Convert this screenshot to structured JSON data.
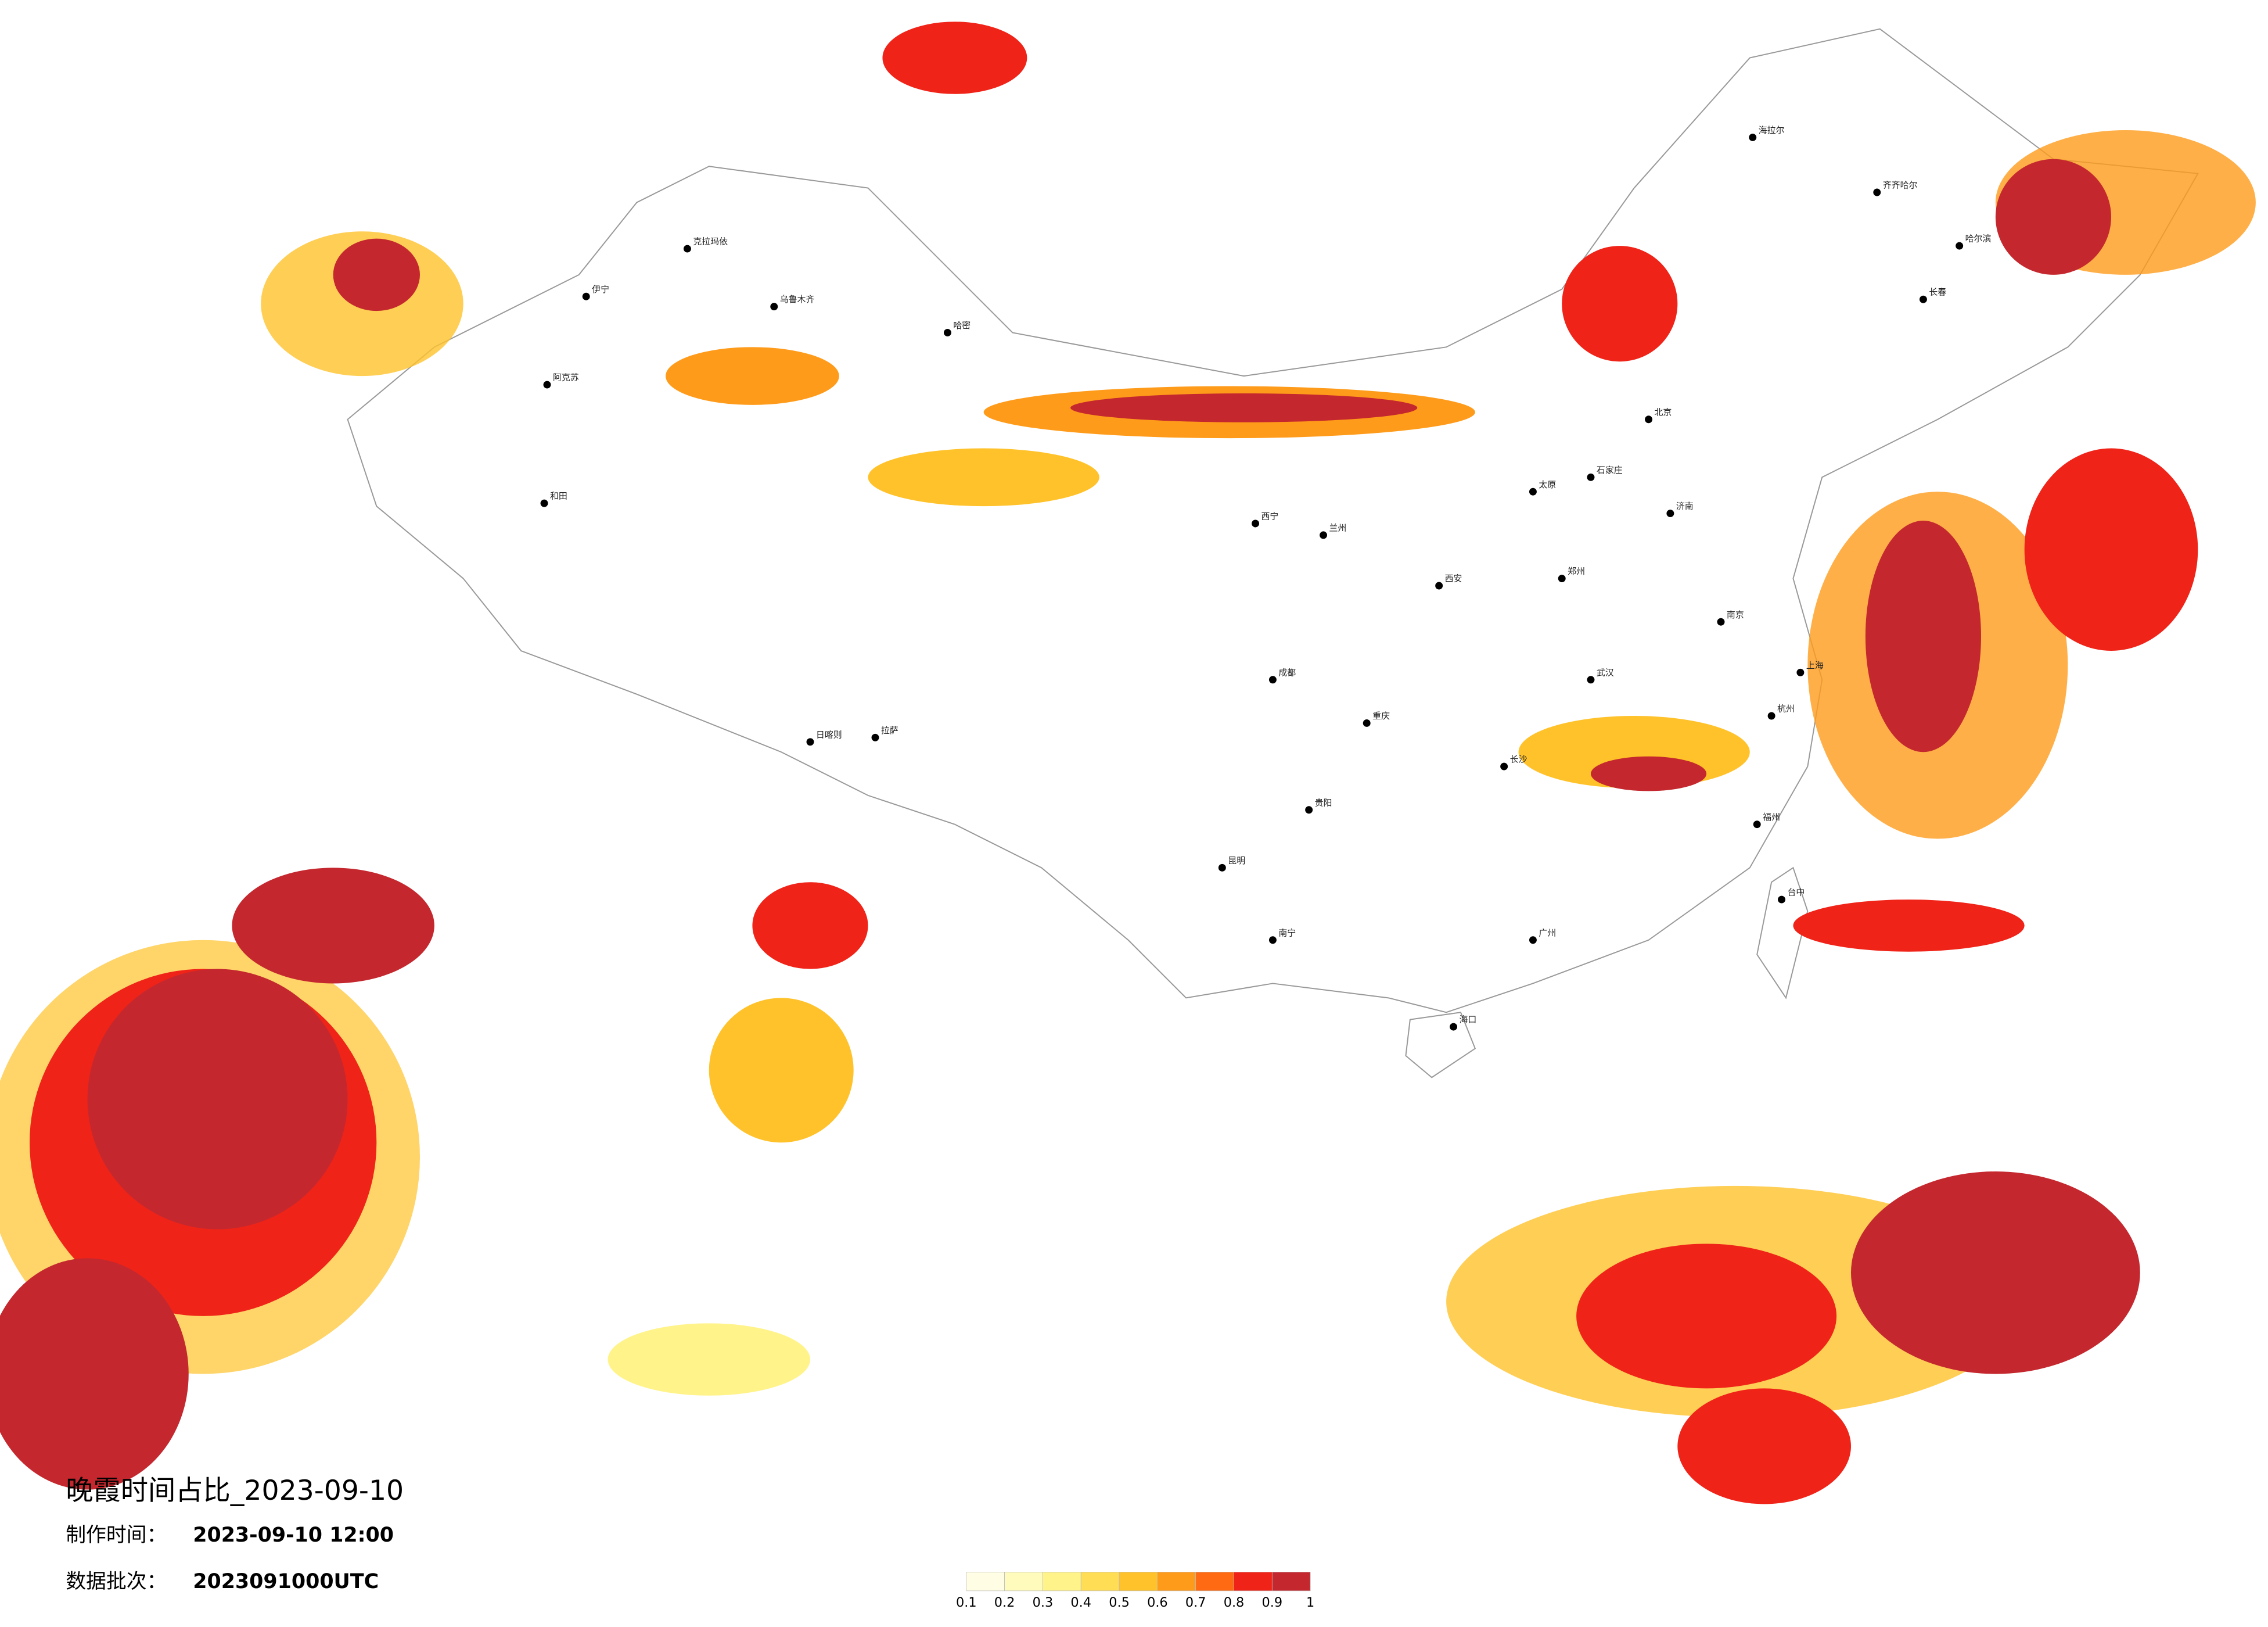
{
  "header": {
    "title": "晚霞时间占比_2023-09-10",
    "made_label": "制作时间：",
    "made_value": "2023-09-10 12:00",
    "batch_label": "数据批次：",
    "batch_value": "2023091000UTC"
  },
  "legend": {
    "ticks": [
      0.1,
      0.2,
      0.3,
      0.4,
      0.5,
      0.6,
      0.7,
      0.8,
      0.9,
      1
    ],
    "colors": [
      "#fffde3",
      "#fffbbd",
      "#fff38a",
      "#ffdd55",
      "#ffc22a",
      "#ff9b1a",
      "#ff6a12",
      "#f02318",
      "#c4282e"
    ]
  },
  "cities": [
    "克拉玛依",
    "乌鲁木齐",
    "伊宁",
    "阿克苏",
    "和田",
    "哈密",
    "海拉尔",
    "齐齐哈尔",
    "哈尔滨",
    "长春",
    "北京",
    "石家庄",
    "太原",
    "西安",
    "兰州",
    "西宁",
    "成都",
    "重庆",
    "贵阳",
    "昆明",
    "南宁",
    "广州",
    "长沙",
    "武汉",
    "郑州",
    "济南",
    "南京",
    "上海",
    "杭州",
    "福州",
    "海口",
    "台中",
    "拉萨",
    "日喀则"
  ]
}
